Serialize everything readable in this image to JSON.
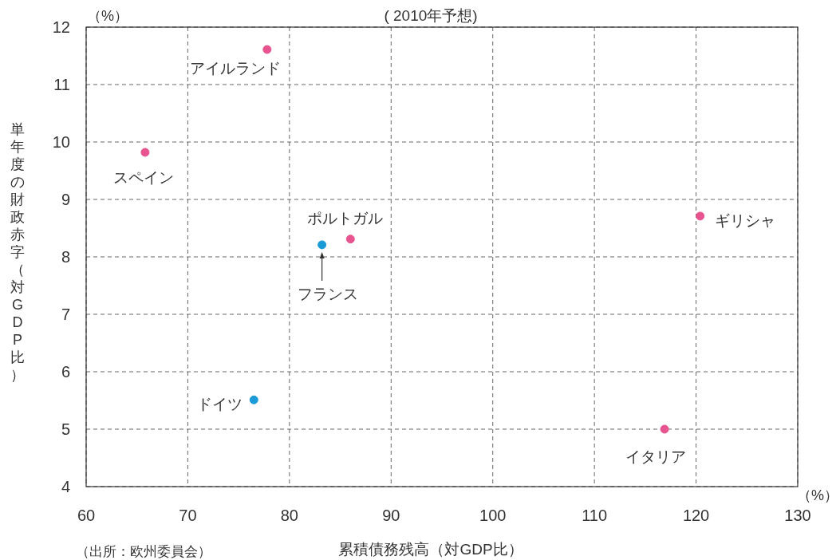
{
  "chart_data": {
    "type": "scatter",
    "title": "( 2010年予想)",
    "xlabel": "累積債務残高（対GDP比）",
    "ylabel": "単年度の財政赤字（対GDP比）",
    "series": [
      {
        "color": "#e8548f",
        "x": [
          77.8,
          65.8,
          86.0,
          120.4,
          116.9
        ],
        "values": [
          11.61,
          9.82,
          8.31,
          8.71,
          5.0
        ]
      },
      {
        "color": "#1a9bd7",
        "x": [
          83.2,
          76.5
        ],
        "values": [
          8.21,
          5.51
        ]
      }
    ],
    "xlim": [
      60,
      130
    ],
    "ylim": [
      4,
      12
    ],
    "xticks": [
      60,
      70,
      80,
      90,
      100,
      110,
      120,
      130
    ],
    "yticks": [
      4,
      5,
      6,
      7,
      8,
      9,
      10,
      11,
      12
    ],
    "grid": true,
    "marker": "circle",
    "annotations": [
      {
        "text": "アイルランド",
        "x": 77.8,
        "y": 11.61
      },
      {
        "text": "スペイン",
        "x": 65.8,
        "y": 9.82
      },
      {
        "text": "ポルトガル",
        "x": 86.0,
        "y": 8.31
      },
      {
        "text": "フランス",
        "x": 83.2,
        "y": 8.21
      },
      {
        "text": "ギリシャ",
        "x": 120.4,
        "y": 8.71
      },
      {
        "text": "イタリア",
        "x": 116.9,
        "y": 5.0
      },
      {
        "text": "ドイツ",
        "x": 76.5,
        "y": 5.51
      },
      "（%）",
      "（%）",
      "（出所：欧州委員会）"
    ]
  }
}
